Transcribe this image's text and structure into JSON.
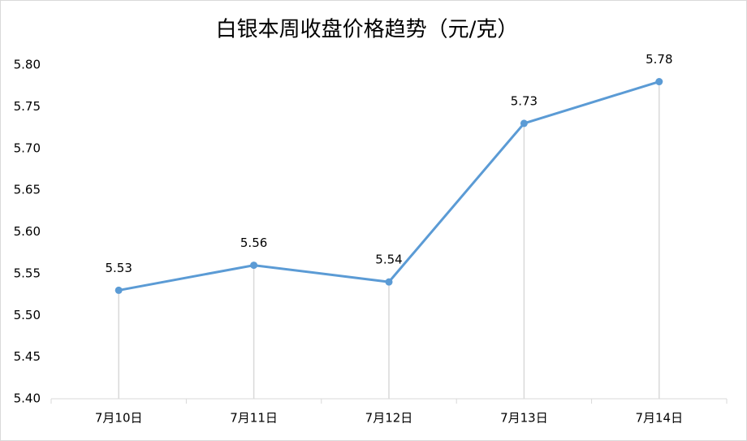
{
  "chart_data": {
    "type": "line",
    "title": "白银本周收盘价格趋势（元/克）",
    "categories": [
      "7月10日",
      "7月11日",
      "7月12日",
      "7月13日",
      "7月14日"
    ],
    "values": [
      5.53,
      5.56,
      5.54,
      5.73,
      5.78
    ],
    "color": "#5b9bd5",
    "ylim": [
      5.4,
      5.8
    ],
    "yticks": [
      {
        "value": 5.4,
        "label": "5.40"
      },
      5.45,
      {
        "value": 5.5,
        "label": "5.50"
      },
      5.55,
      {
        "value": 5.6,
        "label": "5.60"
      },
      5.65,
      {
        "value": 5.7,
        "label": "5.70"
      },
      5.75,
      {
        "value": 5.8,
        "label": "5.80"
      }
    ],
    "drop_lines": true
  }
}
